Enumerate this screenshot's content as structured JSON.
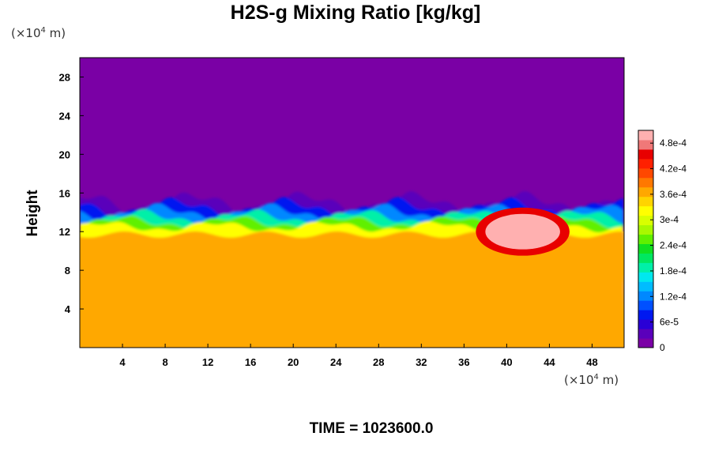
{
  "chart_data": {
    "type": "heatmap",
    "title": "H2S-g Mixing Ratio [kg/kg]",
    "ylabel": "Height",
    "x_unit_base": "(×10",
    "x_unit_exp": "4",
    "x_unit_tail": " m)",
    "y_unit_base": "(×10",
    "y_unit_exp": "4",
    "y_unit_tail": " m)",
    "xlim": [
      0,
      51
    ],
    "ylim": [
      0,
      30
    ],
    "x_ticks": [
      4,
      8,
      12,
      16,
      20,
      24,
      28,
      32,
      36,
      40,
      44,
      48
    ],
    "y_ticks": [
      4,
      8,
      12,
      16,
      20,
      24,
      28
    ],
    "x_tick_labels": [
      "4",
      "8",
      "12",
      "16",
      "20",
      "24",
      "28",
      "32",
      "36",
      "40",
      "44",
      "48"
    ],
    "y_tick_labels": [
      "4",
      "8",
      "12",
      "16",
      "20",
      "24",
      "28"
    ],
    "grid": false,
    "colorbar": {
      "position": "right",
      "labels": [
        "0",
        "6e-5",
        "1.2e-4",
        "1.8e-4",
        "2.4e-4",
        "3e-4",
        "3.6e-4",
        "4.2e-4",
        "4.8e-4"
      ],
      "label_values": [
        0,
        6e-05,
        0.00012,
        0.00018,
        0.00024,
        0.0003,
        0.00036,
        0.00042,
        0.00048
      ],
      "min": 0,
      "max": 0.00051,
      "colors": [
        "#7b00a6",
        "#5a00bb",
        "#2a00d6",
        "#0018f0",
        "#0050ff",
        "#0088ff",
        "#00bcff",
        "#00e8ee",
        "#00f0a8",
        "#00e860",
        "#10e020",
        "#60f000",
        "#a8f800",
        "#d8ff00",
        "#ffff00",
        "#ffd400",
        "#ffa800",
        "#ff7800",
        "#ff4800",
        "#ff2000",
        "#e80000",
        "#f07878",
        "#ffb0b0"
      ]
    },
    "regions": {
      "lower_layer_value": 0.000355,
      "upper_layer_value": 0.0,
      "interface_height": 13.5,
      "high_concentration_patch_x": [
        38,
        45
      ],
      "high_concentration_patch_y": [
        10,
        14
      ],
      "high_concentration_value": 0.0005
    },
    "footer": "TIME = 1023600.0"
  },
  "colors": {
    "background": "#ffffff",
    "upper_layer": "#7a00a5",
    "lower_layer": "#dcff00"
  }
}
